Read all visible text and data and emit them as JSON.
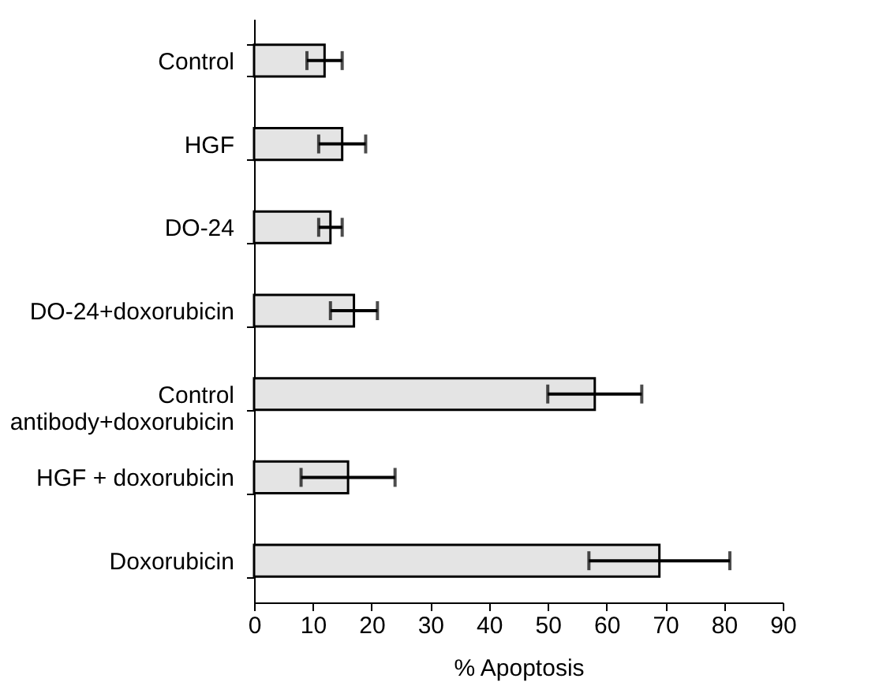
{
  "chart_data": {
    "type": "bar",
    "orientation": "horizontal",
    "xlabel": "% Apoptosis",
    "categories": [
      "Control",
      "HGF",
      "DO-24",
      "DO-24+doxorubicin",
      "Control antibody+doxorubicin",
      "HGF + doxorubicin",
      "Doxorubicin"
    ],
    "values": [
      12,
      15,
      13,
      17,
      58,
      16,
      69
    ],
    "errors": [
      3,
      4,
      2,
      4,
      8,
      8,
      12
    ],
    "color": "#e4e4e4",
    "xlim": [
      0,
      90
    ],
    "xticks": [
      0,
      10,
      20,
      30,
      40,
      50,
      60,
      70,
      80,
      90
    ],
    "grid": false
  }
}
